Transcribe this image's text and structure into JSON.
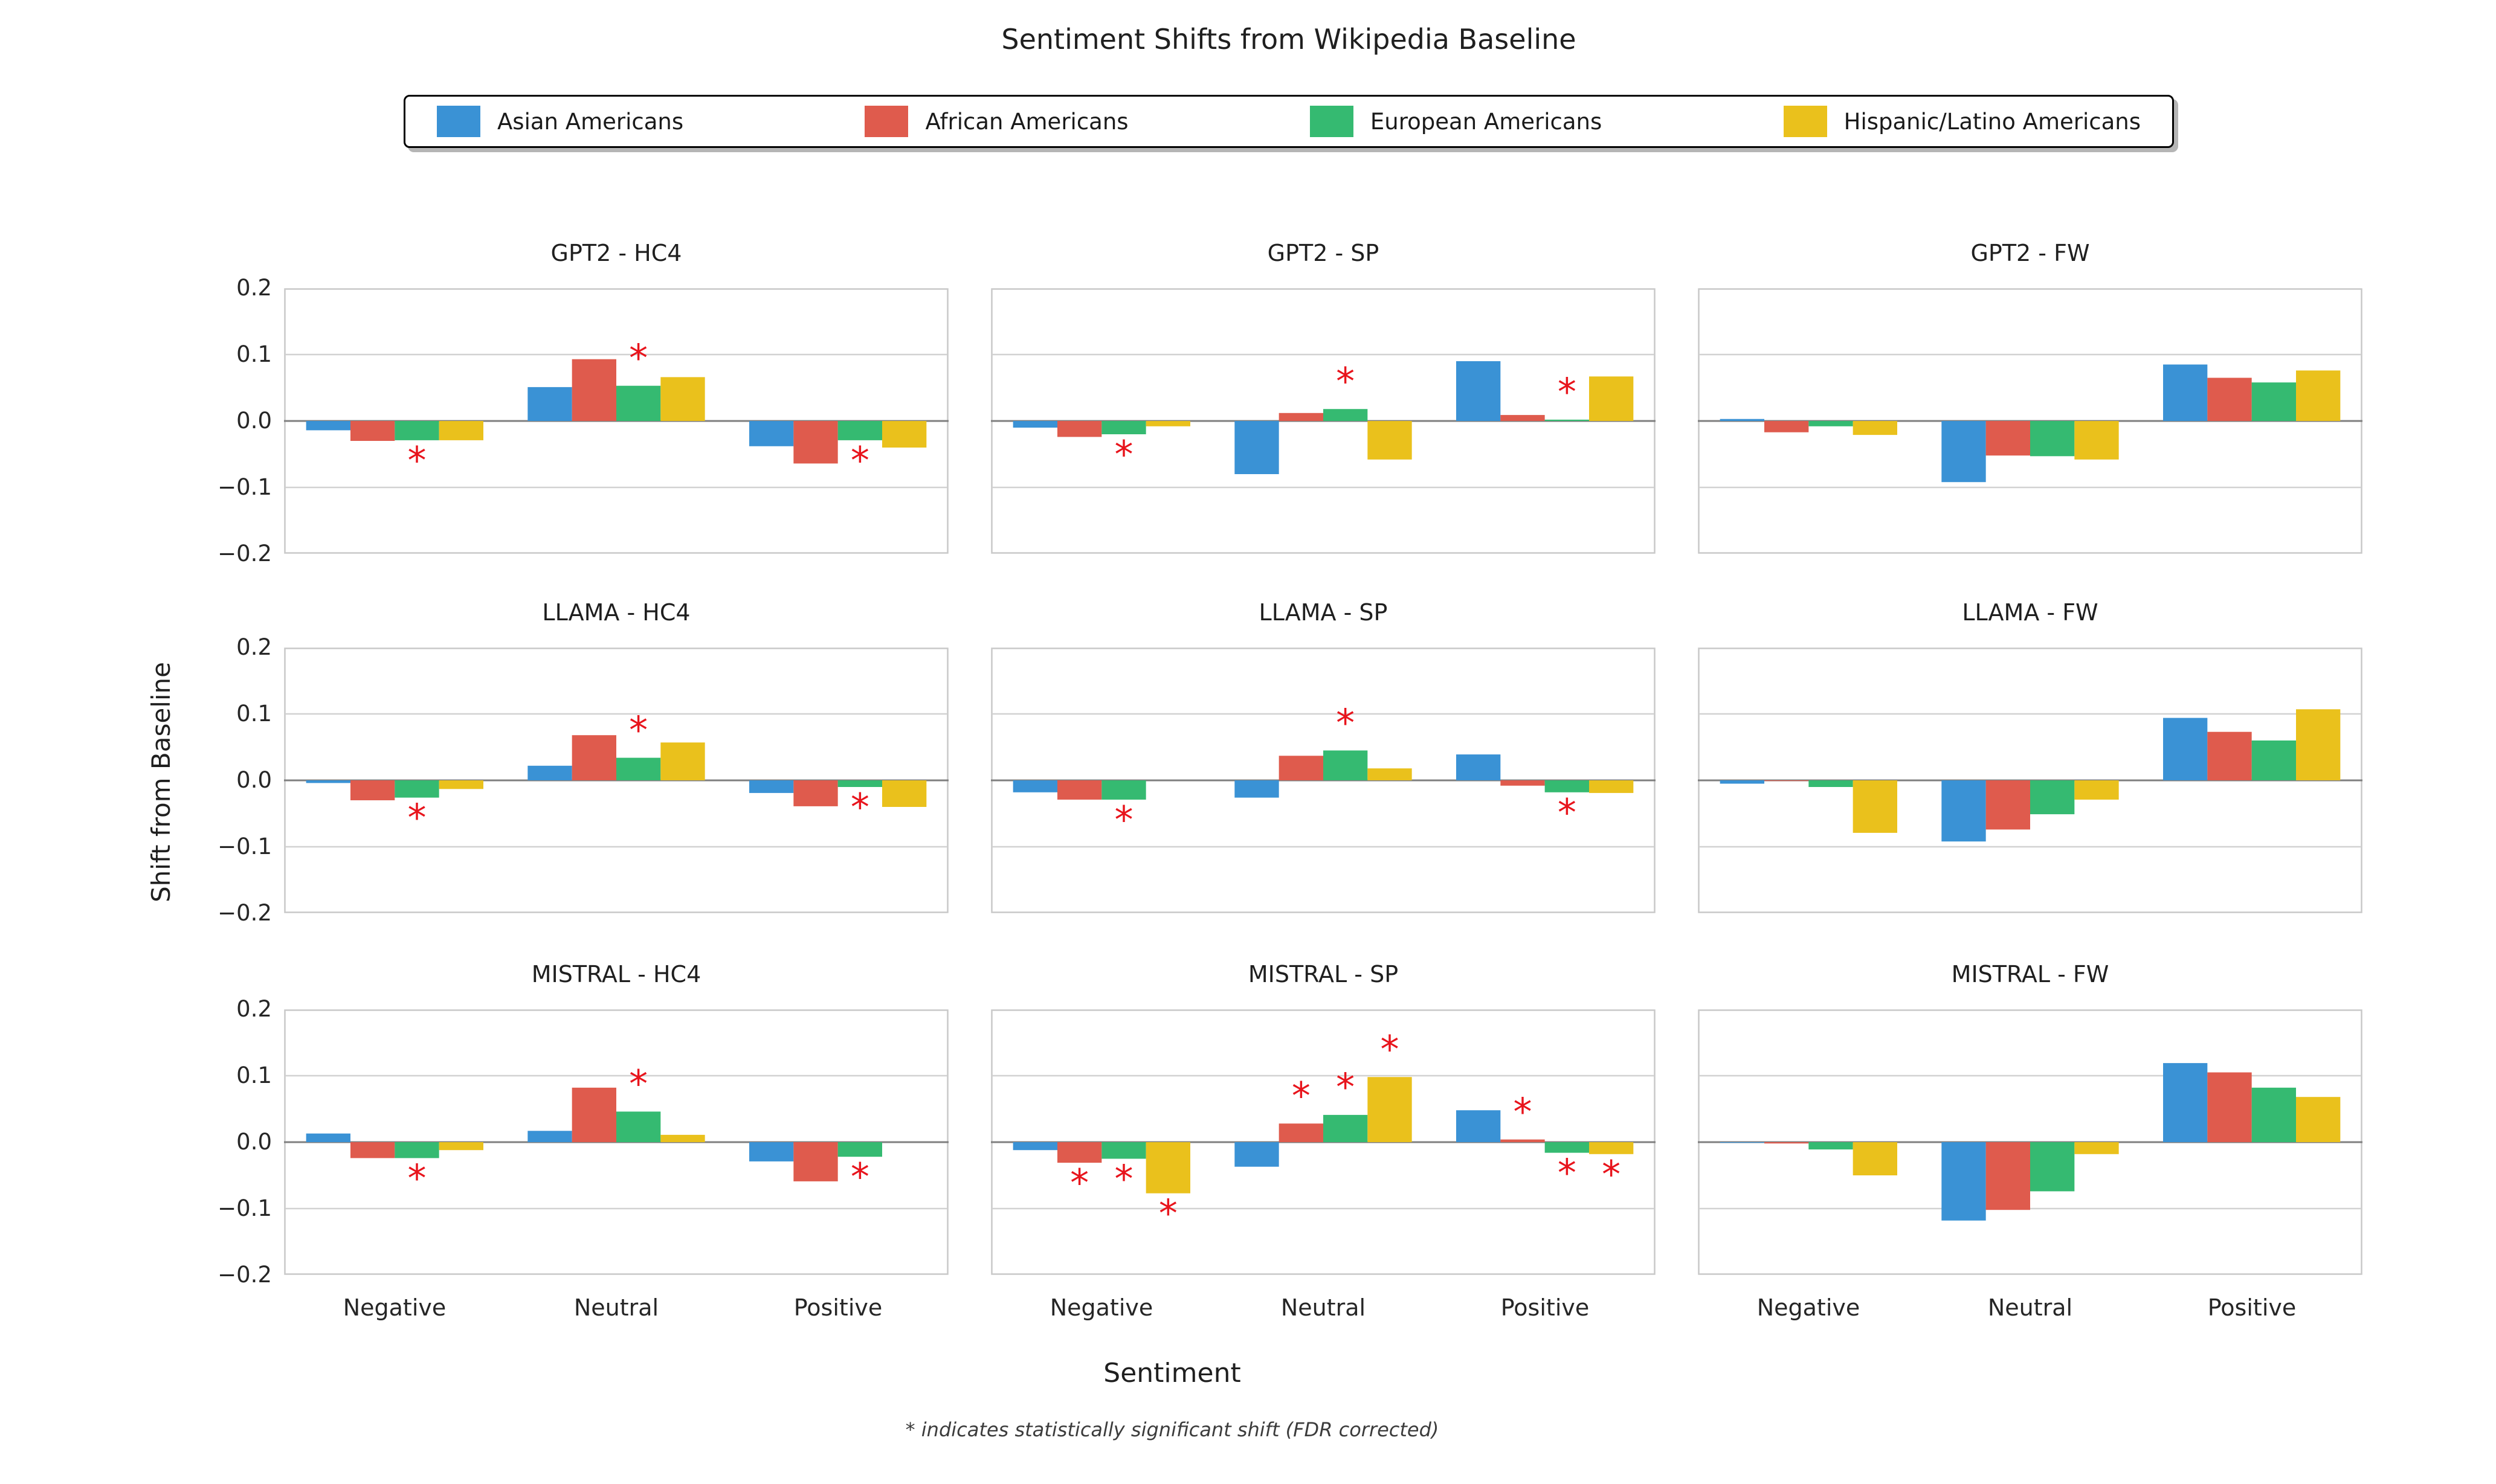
{
  "figure": {
    "title": "Sentiment Shifts from Wikipedia Baseline",
    "xlabel": "Sentiment",
    "ylabel": "Shift from Baseline",
    "footnote": "* indicates statistically significant shift (FDR corrected)",
    "significance_marker": "*",
    "significance_color": "#e8141c"
  },
  "legend": {
    "entries": [
      {
        "label": "Asian Americans",
        "color": "#3a92d5"
      },
      {
        "label": "African Americans",
        "color": "#df5b4d"
      },
      {
        "label": "European Americans",
        "color": "#35ba71"
      },
      {
        "label": "Hispanic/Latino Americans",
        "color": "#eac11c"
      }
    ]
  },
  "axes": {
    "yticks": [
      "0.2",
      "0.1",
      "0.0",
      "−0.1",
      "−0.2"
    ],
    "xticks": [
      "Negative",
      "Neutral",
      "Positive"
    ],
    "ylim": [
      -0.2,
      0.2
    ],
    "grid": "horizontal"
  },
  "chart_data": [
    {
      "type": "bar",
      "title": "GPT2 - HC4",
      "categories": [
        "Negative",
        "Neutral",
        "Positive"
      ],
      "series": [
        {
          "name": "Asian Americans",
          "values": [
            -0.014,
            0.051,
            -0.038
          ]
        },
        {
          "name": "African Americans",
          "values": [
            -0.03,
            0.093,
            -0.064
          ]
        },
        {
          "name": "European Americans",
          "values": [
            -0.029,
            0.053,
            -0.029
          ]
        },
        {
          "name": "Hispanic/Latino Americans",
          "values": [
            -0.029,
            0.066,
            -0.04
          ]
        }
      ],
      "significant": [
        [
          0,
          2
        ],
        [
          1,
          2
        ],
        [
          2,
          2
        ]
      ]
    },
    {
      "type": "bar",
      "title": "GPT2 - SP",
      "categories": [
        "Negative",
        "Neutral",
        "Positive"
      ],
      "series": [
        {
          "name": "Asian Americans",
          "values": [
            -0.01,
            -0.08,
            0.09
          ]
        },
        {
          "name": "African Americans",
          "values": [
            -0.024,
            0.012,
            0.009
          ]
        },
        {
          "name": "European Americans",
          "values": [
            -0.02,
            0.018,
            0.002
          ]
        },
        {
          "name": "Hispanic/Latino Americans",
          "values": [
            -0.008,
            -0.058,
            0.067
          ]
        }
      ],
      "significant": [
        [
          0,
          2
        ],
        [
          1,
          2
        ],
        [
          2,
          2
        ]
      ]
    },
    {
      "type": "bar",
      "title": "GPT2 - FW",
      "categories": [
        "Negative",
        "Neutral",
        "Positive"
      ],
      "series": [
        {
          "name": "Asian Americans",
          "values": [
            0.003,
            -0.092,
            0.085
          ]
        },
        {
          "name": "African Americans",
          "values": [
            -0.017,
            -0.052,
            0.065
          ]
        },
        {
          "name": "European Americans",
          "values": [
            -0.008,
            -0.053,
            0.058
          ]
        },
        {
          "name": "Hispanic/Latino Americans",
          "values": [
            -0.021,
            -0.058,
            0.076
          ]
        }
      ],
      "significant": []
    },
    {
      "type": "bar",
      "title": "LLAMA - HC4",
      "categories": [
        "Negative",
        "Neutral",
        "Positive"
      ],
      "series": [
        {
          "name": "Asian Americans",
          "values": [
            -0.004,
            0.022,
            -0.019
          ]
        },
        {
          "name": "African Americans",
          "values": [
            -0.03,
            0.068,
            -0.039
          ]
        },
        {
          "name": "European Americans",
          "values": [
            -0.026,
            0.034,
            -0.01
          ]
        },
        {
          "name": "Hispanic/Latino Americans",
          "values": [
            -0.013,
            0.057,
            -0.04
          ]
        }
      ],
      "significant": [
        [
          0,
          2
        ],
        [
          1,
          2
        ],
        [
          2,
          2
        ]
      ]
    },
    {
      "type": "bar",
      "title": "LLAMA - SP",
      "categories": [
        "Negative",
        "Neutral",
        "Positive"
      ],
      "series": [
        {
          "name": "Asian Americans",
          "values": [
            -0.018,
            -0.026,
            0.039
          ]
        },
        {
          "name": "African Americans",
          "values": [
            -0.029,
            0.037,
            -0.008
          ]
        },
        {
          "name": "European Americans",
          "values": [
            -0.029,
            0.045,
            -0.018
          ]
        },
        {
          "name": "Hispanic/Latino Americans",
          "values": [
            0.0,
            0.018,
            -0.019
          ]
        }
      ],
      "significant": [
        [
          0,
          2
        ],
        [
          1,
          2
        ],
        [
          2,
          2
        ]
      ]
    },
    {
      "type": "bar",
      "title": "LLAMA - FW",
      "categories": [
        "Negative",
        "Neutral",
        "Positive"
      ],
      "series": [
        {
          "name": "Asian Americans",
          "values": [
            -0.005,
            -0.092,
            0.094
          ]
        },
        {
          "name": "African Americans",
          "values": [
            -0.001,
            -0.074,
            0.073
          ]
        },
        {
          "name": "European Americans",
          "values": [
            -0.01,
            -0.051,
            0.06
          ]
        },
        {
          "name": "Hispanic/Latino Americans",
          "values": [
            -0.079,
            -0.029,
            0.107
          ]
        }
      ],
      "significant": []
    },
    {
      "type": "bar",
      "title": "MISTRAL - HC4",
      "categories": [
        "Negative",
        "Neutral",
        "Positive"
      ],
      "series": [
        {
          "name": "Asian Americans",
          "values": [
            0.013,
            0.017,
            -0.029
          ]
        },
        {
          "name": "African Americans",
          "values": [
            -0.024,
            0.082,
            -0.059
          ]
        },
        {
          "name": "European Americans",
          "values": [
            -0.024,
            0.046,
            -0.022
          ]
        },
        {
          "name": "Hispanic/Latino Americans",
          "values": [
            -0.012,
            0.011,
            0.0
          ]
        }
      ],
      "significant": [
        [
          0,
          2
        ],
        [
          1,
          2
        ],
        [
          2,
          2
        ]
      ]
    },
    {
      "type": "bar",
      "title": "MISTRAL - SP",
      "categories": [
        "Negative",
        "Neutral",
        "Positive"
      ],
      "series": [
        {
          "name": "Asian Americans",
          "values": [
            -0.012,
            -0.037,
            0.048
          ]
        },
        {
          "name": "African Americans",
          "values": [
            -0.031,
            0.028,
            0.004
          ]
        },
        {
          "name": "European Americans",
          "values": [
            -0.025,
            0.041,
            -0.016
          ]
        },
        {
          "name": "Hispanic/Latino Americans",
          "values": [
            -0.077,
            0.098,
            -0.018
          ]
        }
      ],
      "significant": [
        [
          0,
          1
        ],
        [
          0,
          2
        ],
        [
          0,
          3
        ],
        [
          1,
          1
        ],
        [
          1,
          2
        ],
        [
          1,
          3
        ],
        [
          2,
          1
        ],
        [
          2,
          2
        ],
        [
          2,
          3
        ]
      ]
    },
    {
      "type": "bar",
      "title": "MISTRAL - FW",
      "categories": [
        "Negative",
        "Neutral",
        "Positive"
      ],
      "series": [
        {
          "name": "Asian Americans",
          "values": [
            -0.001,
            -0.118,
            0.119
          ]
        },
        {
          "name": "African Americans",
          "values": [
            -0.002,
            -0.102,
            0.105
          ]
        },
        {
          "name": "European Americans",
          "values": [
            -0.011,
            -0.074,
            0.082
          ]
        },
        {
          "name": "Hispanic/Latino Americans",
          "values": [
            -0.05,
            -0.018,
            0.068
          ]
        }
      ],
      "significant": []
    }
  ]
}
